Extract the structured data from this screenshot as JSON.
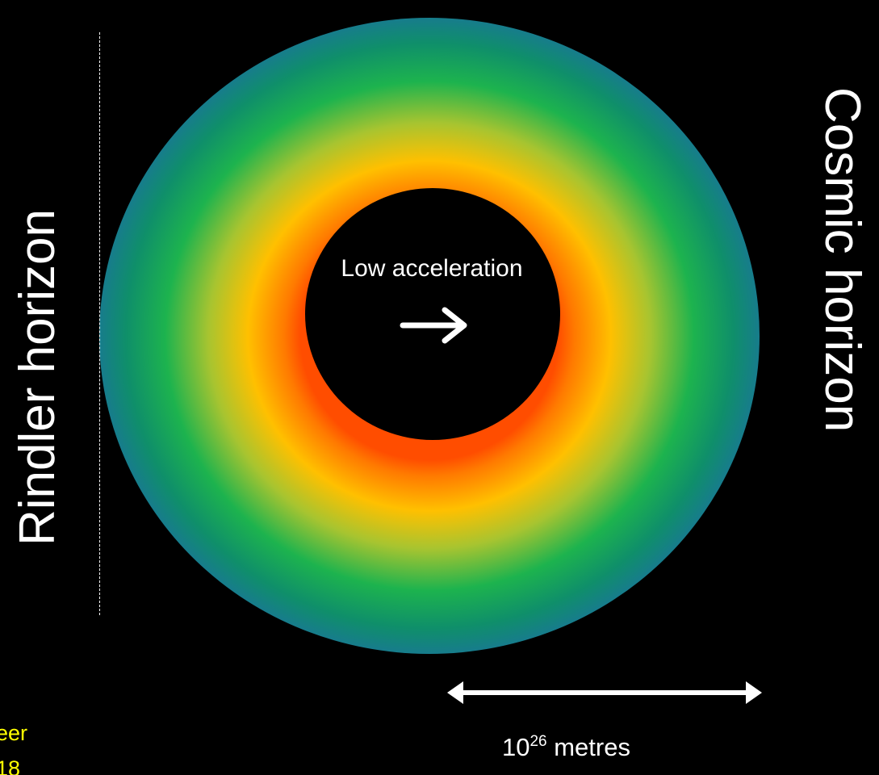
{
  "labels": {
    "left_horizon": "Rindler horizon",
    "right_horizon": "Cosmic horizon",
    "center": "Low acceleration",
    "scale_base": "10",
    "scale_exponent": "26",
    "scale_unit": " metres",
    "credit_line1": "neer",
    "credit_line2": "018"
  },
  "icons": {
    "center_arrow": "right-arrow-icon",
    "scale_bar": "double-arrow-icon"
  },
  "colors": {
    "background": "#000000",
    "inner": "#ff4d00",
    "middle": "#ffc000",
    "outer_green": "#1db34e",
    "outer_edge": "#177c8c",
    "text": "#ffffff",
    "credit_text": "#ffff00"
  }
}
